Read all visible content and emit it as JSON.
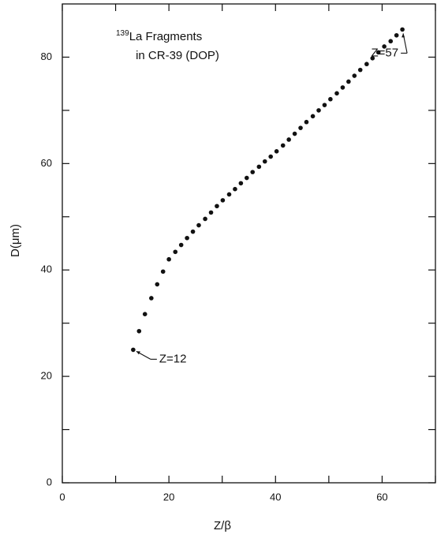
{
  "chart_data": {
    "type": "scatter",
    "title_superscript": "139",
    "title": "La Fragments",
    "subtitle": "in CR-39 (DOP)",
    "x_label": "Z/β",
    "y_label": "D(μm)",
    "xlim": [
      0,
      70
    ],
    "ylim": [
      0,
      90
    ],
    "xticks": [
      0,
      20,
      40,
      60
    ],
    "yticks": [
      0,
      20,
      40,
      60,
      80
    ],
    "xminorticks": [
      10,
      30,
      50,
      70
    ],
    "yminorticks": [
      10,
      30,
      50,
      70
    ],
    "color": "#111111",
    "x": [
      13.3,
      14.4,
      15.5,
      16.7,
      17.8,
      18.9,
      20.0,
      21.2,
      22.3,
      23.4,
      24.5,
      25.6,
      26.8,
      27.9,
      29.0,
      30.1,
      31.3,
      32.4,
      33.5,
      34.6,
      35.7,
      36.9,
      38.0,
      39.1,
      40.2,
      41.4,
      42.5,
      43.6,
      44.7,
      45.8,
      47.0,
      48.1,
      49.2,
      50.3,
      51.5,
      52.6,
      53.7,
      54.8,
      55.9,
      57.1,
      58.2,
      59.3,
      60.4,
      61.6,
      62.7,
      63.8
    ],
    "values": [
      25.0,
      28.5,
      31.7,
      34.7,
      37.3,
      39.7,
      42.0,
      43.4,
      44.7,
      46.0,
      47.2,
      48.4,
      49.6,
      50.8,
      52.0,
      53.1,
      54.2,
      55.2,
      56.3,
      57.3,
      58.4,
      59.4,
      60.4,
      61.3,
      62.3,
      63.4,
      64.5,
      65.6,
      66.7,
      67.8,
      68.9,
      70.0,
      71.0,
      72.1,
      73.2,
      74.3,
      75.4,
      76.5,
      77.6,
      78.7,
      79.8,
      80.9,
      82.0,
      83.0,
      84.1,
      85.2
    ],
    "annotations": [
      {
        "text": "Z=12",
        "x": 13.3,
        "y": 25.0
      },
      {
        "text": "Z=57",
        "x": 63.8,
        "y": 85.2
      }
    ]
  }
}
